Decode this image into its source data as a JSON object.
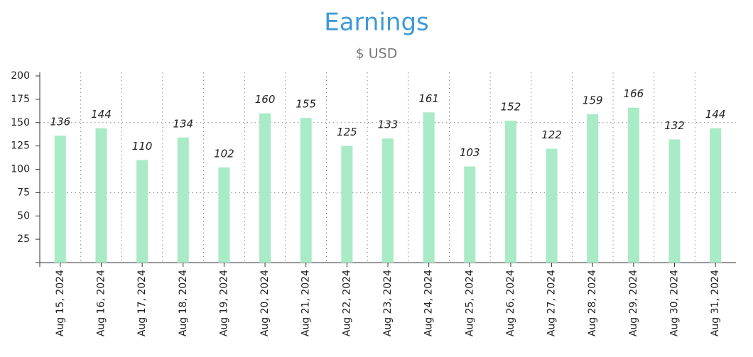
{
  "chart_data": {
    "type": "bar",
    "title": "Earnings",
    "subtitle": "$ USD",
    "categories": [
      "Aug 15, 2024",
      "Aug 16, 2024",
      "Aug 17, 2024",
      "Aug 18, 2024",
      "Aug 19, 2024",
      "Aug 20, 2024",
      "Aug 21, 2024",
      "Aug 22, 2024",
      "Aug 23, 2024",
      "Aug 24, 2024",
      "Aug 25, 2024",
      "Aug 26, 2024",
      "Aug 27, 2024",
      "Aug 28, 2024",
      "Aug 29, 2024",
      "Aug 30, 2024",
      "Aug 31, 2024"
    ],
    "values": [
      136,
      144,
      110,
      134,
      102,
      160,
      155,
      125,
      133,
      161,
      103,
      152,
      122,
      159,
      166,
      132,
      144
    ],
    "color": "#a8ebc6",
    "ylim": [
      0,
      200
    ],
    "yticks": [
      25,
      50,
      75,
      100,
      125,
      150,
      175,
      200
    ],
    "grid_y": [
      75,
      150
    ],
    "grid_x": true
  }
}
